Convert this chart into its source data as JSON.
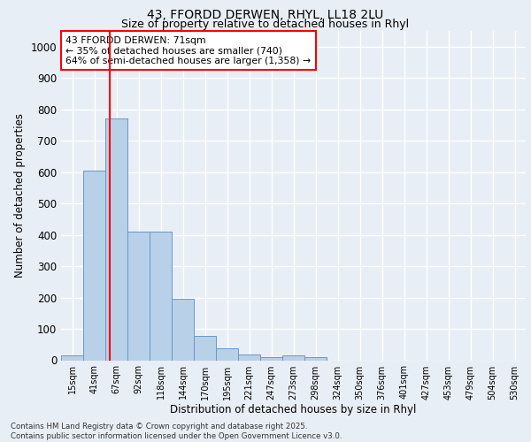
{
  "title_line1": "43, FFORDD DERWEN, RHYL, LL18 2LU",
  "title_line2": "Size of property relative to detached houses in Rhyl",
  "xlabel": "Distribution of detached houses by size in Rhyl",
  "ylabel": "Number of detached properties",
  "bin_labels": [
    "15sqm",
    "41sqm",
    "67sqm",
    "92sqm",
    "118sqm",
    "144sqm",
    "170sqm",
    "195sqm",
    "221sqm",
    "247sqm",
    "273sqm",
    "298sqm",
    "324sqm",
    "350sqm",
    "376sqm",
    "401sqm",
    "427sqm",
    "453sqm",
    "479sqm",
    "504sqm",
    "530sqm"
  ],
  "bar_values": [
    15,
    605,
    770,
    410,
    410,
    195,
    78,
    38,
    18,
    10,
    15,
    10,
    0,
    0,
    0,
    0,
    0,
    0,
    0,
    0,
    0
  ],
  "bar_color": "#b8d0e8",
  "bar_edge_color": "#6699cc",
  "vline_x": 2.18,
  "vline_color": "red",
  "annotation_text": "43 FFORDD DERWEN: 71sqm\n← 35% of detached houses are smaller (740)\n64% of semi-detached houses are larger (1,358) →",
  "annotation_box_color": "#ffffff",
  "annotation_box_edge": "red",
  "ylim": [
    0,
    1050
  ],
  "yticks": [
    0,
    100,
    200,
    300,
    400,
    500,
    600,
    700,
    800,
    900,
    1000
  ],
  "bg_color": "#e8eef5",
  "grid_color": "#ffffff",
  "footer_line1": "Contains HM Land Registry data © Crown copyright and database right 2025.",
  "footer_line2": "Contains public sector information licensed under the Open Government Licence v3.0."
}
